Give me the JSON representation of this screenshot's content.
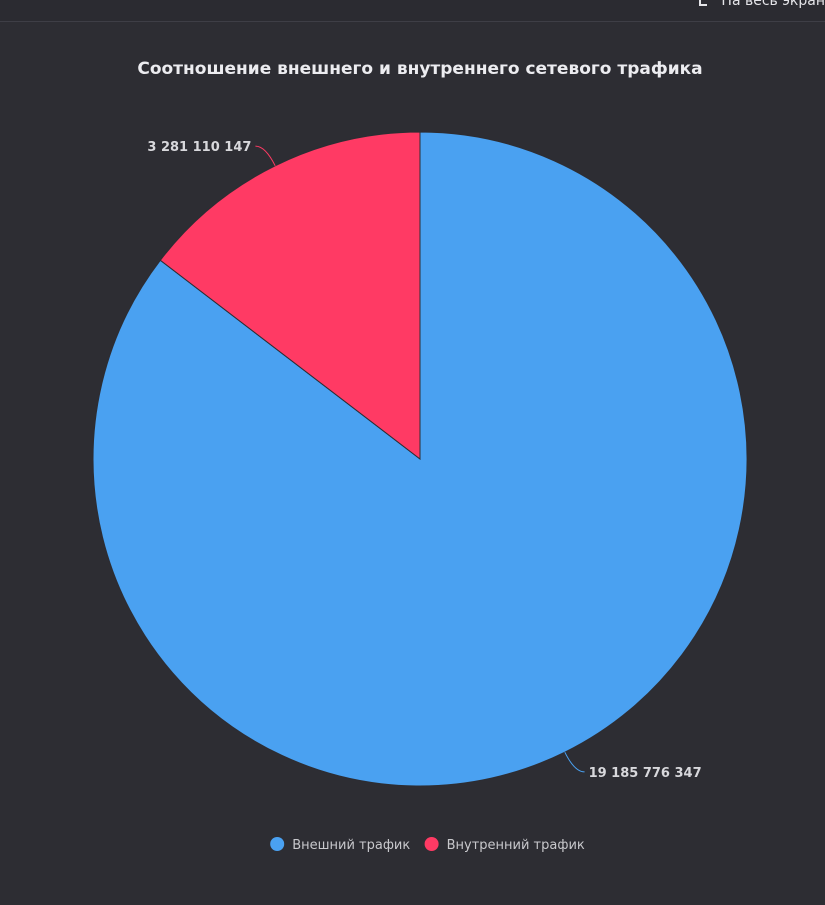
{
  "toolbar": {
    "fullscreen_label": "На весь экран"
  },
  "chart_data": {
    "type": "pie",
    "title": "Соотношение внешнего и внутреннего сетевого трафика",
    "slices": [
      {
        "name": "Внешний трафик",
        "value": 19185776347,
        "label": "19 185 776 347",
        "color": "#4aa1f1"
      },
      {
        "name": "Внутренний трафик",
        "value": 3281110147,
        "label": "3 281 110 147",
        "color": "#ff3a64"
      }
    ],
    "legend_position": "bottom-center"
  }
}
